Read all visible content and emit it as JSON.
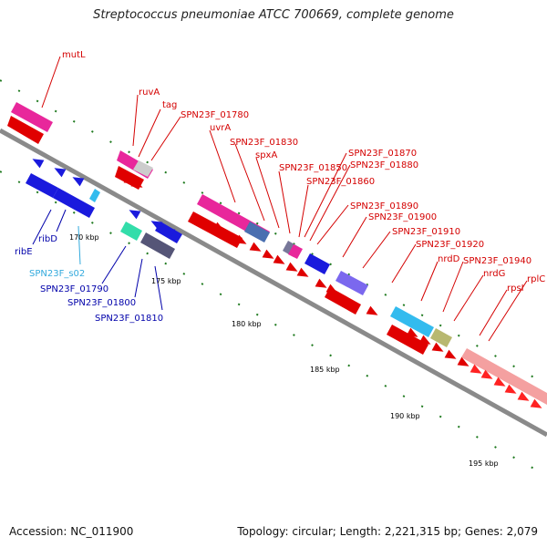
{
  "title": "Streptococcus pneumoniae ATCC 700669, complete genome",
  "footer": {
    "accession": "Accession: NC_011900",
    "summary": "Topology: circular; Length: 2,221,315 bp; Genes: 2,079"
  },
  "colors": {
    "backbone": "#8a8a8a",
    "tick": "#1f7a1f",
    "label_red": "#d40000",
    "label_blue": "#0000aa",
    "label_cyan": "#33aadd"
  },
  "scale_labels": [
    "170 kbp",
    "175 kbp",
    "180 kbp",
    "185 kbp",
    "190 kbp",
    "195 kbp"
  ],
  "upper_labels": [
    "mutL",
    "ruvA",
    "tag",
    "SPN23F_01780",
    "uvrA",
    "SPN23F_01830",
    "spxA",
    "SPN23F_01850",
    "SPN23F_01860",
    "SPN23F_01870",
    "SPN23F_01880",
    "SPN23F_01890",
    "SPN23F_01900",
    "SPN23F_01910",
    "SPN23F_01920",
    "nrdD",
    "SPN23F_01940",
    "nrdG",
    "rpsI",
    "rplC"
  ],
  "lower_labels": [
    "ribE",
    "ribD",
    "SPN23F_s02",
    "SPN23F_01790",
    "SPN23F_01800",
    "SPN23F_01810"
  ]
}
